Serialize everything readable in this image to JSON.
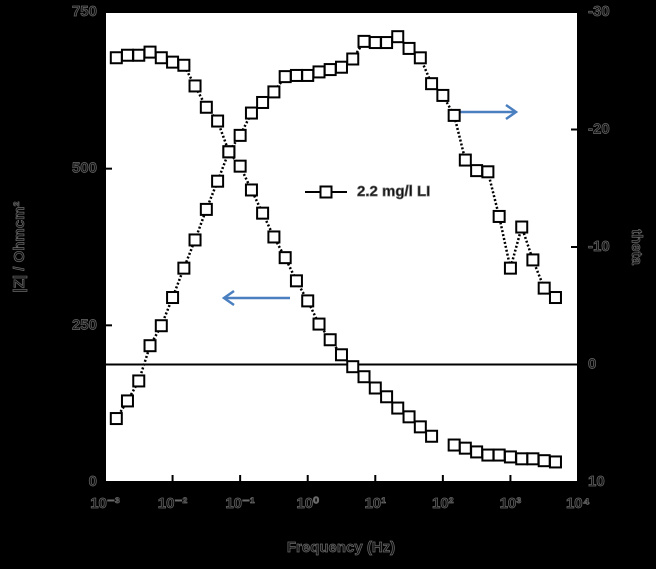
{
  "chart_data": {
    "type": "line",
    "xlabel": "Frequency (Hz)",
    "ylabel": "|Z| / Ohmcm²",
    "y2label": "theta",
    "x": [
      0.00147,
      0.00215,
      0.00316,
      0.00464,
      0.00681,
      0.01,
      0.0147,
      0.0215,
      0.0316,
      0.0464,
      0.0681,
      0.1,
      0.147,
      0.215,
      0.316,
      0.464,
      0.681,
      1,
      1.47,
      2.15,
      3.16,
      4.64,
      6.81,
      10,
      14.7,
      21.5,
      31.6,
      46.4,
      68.1,
      100,
      147,
      215,
      316,
      464,
      681,
      1000,
      1470,
      2150,
      3160,
      4640
    ],
    "series": [
      {
        "name": "2.2 mg/l LI",
        "color": "#000000",
        "values": [
          677,
          681,
          681,
          686,
          677,
          670,
          665,
          632,
          598,
          576,
          527,
          504,
          466,
          429,
          391,
          358,
          321,
          289,
          252,
          227,
          203,
          184,
          168,
          150,
          136,
          118,
          104,
          88,
          73,
          null,
          59,
          54,
          48,
          43,
          43,
          40,
          37,
          37,
          34,
          32
        ]
      },
      {
        "color": "#000000",
        "axis": "y2",
        "values": [
          4.6,
          3.1,
          1.4,
          -1.6,
          -3.3,
          -5.7,
          -8.2,
          -10.6,
          -13.2,
          -15.6,
          -18.1,
          -19.5,
          -21.4,
          -22.3,
          -23.2,
          -24.5,
          -24.6,
          -24.6,
          -24.9,
          -25.1,
          -25.3,
          -26.0,
          -27.5,
          -27.4,
          -27.4,
          -27.9,
          -26.9,
          -26.1,
          -23.9,
          -22.9,
          -21.2,
          -17.4,
          -16.5,
          -16.4,
          -12.6,
          -8.2,
          -11.7,
          -8.9,
          -6.5,
          -5.7
        ]
      }
    ],
    "xscale": "log",
    "xlim": [
      0.001,
      10000
    ],
    "xticks": [
      {
        "value": 0.001,
        "label": "10⁻³"
      },
      {
        "value": 0.01,
        "label": "10⁻²"
      },
      {
        "value": 0.1,
        "label": "10⁻¹"
      },
      {
        "value": 1,
        "label": "10⁰"
      },
      {
        "value": 10,
        "label": "10¹"
      },
      {
        "value": 100,
        "label": "10²"
      },
      {
        "value": 1000,
        "label": "10³"
      },
      {
        "value": 10000,
        "label": "10⁴"
      }
    ],
    "ylim": [
      0,
      750
    ],
    "yticks": [
      0,
      250,
      500,
      750
    ],
    "y2lim": [
      10,
      -30
    ],
    "y2ticks": [
      -30,
      -20,
      -10,
      0,
      10
    ],
    "zero_line": true,
    "legend": "center",
    "marker": "square"
  }
}
